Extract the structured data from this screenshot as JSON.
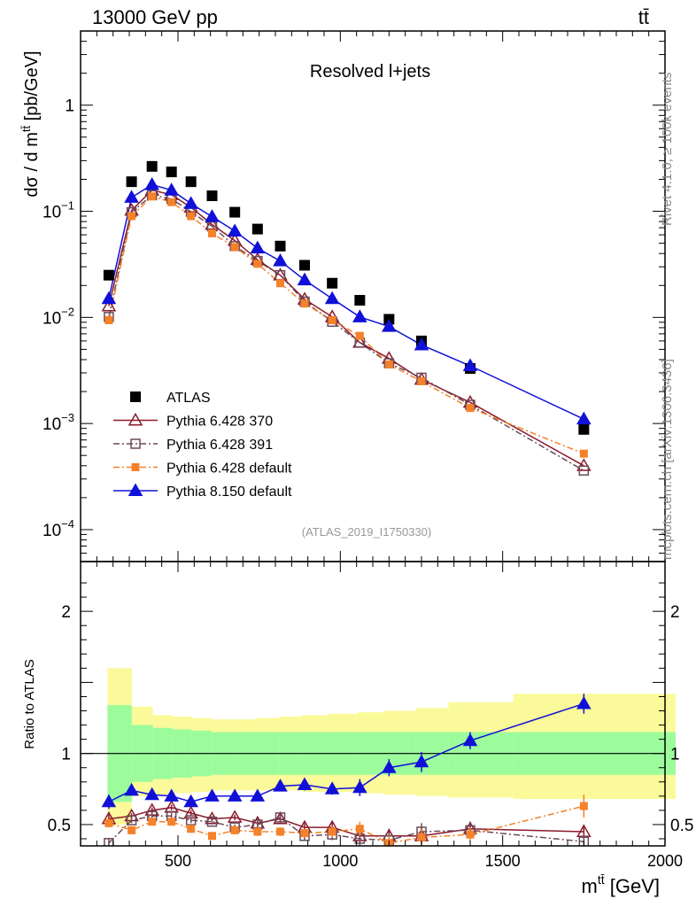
{
  "header": {
    "energy_label": "13000 GeV pp",
    "process_label": "tt̄"
  },
  "side_notes": {
    "rivet": "Rivet 4.1.0, ≥ 100k events",
    "mcplots": "mcplots.cern.ch [arXiv:1306.3436]"
  },
  "colors": {
    "ATLAS": "#000000",
    "Pythia 6.428 370": "#8b1a2b",
    "Pythia 6.428 391": "#6b4a5a",
    "Pythia 6.428 default": "#f4822a",
    "Pythia 8.150 default": "#1010d8",
    "band_inner": "#9cfc9c",
    "band_outer": "#fafa9a"
  },
  "chart_data": [
    {
      "type": "scatter",
      "title": "Resolved l+jets",
      "xlabel": "m^{tt̄} [GeV]",
      "ylabel": "dσ / d m^{tt̄} [pb/GeV]",
      "yscale": "log",
      "xlim": [
        200,
        2000
      ],
      "ylim": [
        5e-05,
        5
      ],
      "yticks": [
        {
          "value": 0.0001,
          "mant": "10",
          "exp": "−4"
        },
        {
          "value": 0.001,
          "mant": "10",
          "exp": "−3"
        },
        {
          "value": 0.01,
          "mant": "10",
          "exp": "−2"
        },
        {
          "value": 0.1,
          "mant": "10",
          "exp": "−1"
        },
        {
          "value": 1,
          "mant": "1",
          "exp": ""
        }
      ],
      "analysis_label": "(ATLAS_2019_I1750330)",
      "legend_position": "lower-left",
      "bins": [
        [
          250,
          325
        ],
        [
          325,
          390
        ],
        [
          390,
          450
        ],
        [
          450,
          510
        ],
        [
          510,
          570
        ],
        [
          570,
          640
        ],
        [
          640,
          710
        ],
        [
          710,
          780
        ],
        [
          780,
          850
        ],
        [
          850,
          930
        ],
        [
          930,
          1020
        ],
        [
          1020,
          1100
        ],
        [
          1100,
          1200
        ],
        [
          1200,
          1300
        ],
        [
          1300,
          1500
        ],
        [
          1500,
          2000
        ]
      ],
      "x": [
        287,
        357,
        420,
        480,
        540,
        605,
        675,
        745,
        815,
        890,
        975,
        1060,
        1150,
        1250,
        1400,
        1750
      ],
      "series": [
        {
          "name": "ATLAS",
          "marker": "square-filled",
          "line": "none",
          "values": [
            0.025,
            0.19,
            0.265,
            0.235,
            0.19,
            0.14,
            0.098,
            0.068,
            0.047,
            0.031,
            0.021,
            0.0145,
            0.0096,
            0.006,
            0.0033,
            0.00088
          ]
        },
        {
          "name": "Pythia 6.428 370",
          "marker": "triangle-open",
          "line": "solid",
          "values": [
            0.0128,
            0.102,
            0.158,
            0.143,
            0.109,
            0.075,
            0.053,
            0.035,
            0.025,
            0.0148,
            0.0101,
            0.0058,
            0.0041,
            0.0026,
            0.00158,
            0.0004
          ]
        },
        {
          "name": "Pythia 6.428 391",
          "marker": "square-open",
          "line": "dashdot",
          "values": [
            0.0101,
            0.098,
            0.142,
            0.131,
            0.099,
            0.072,
            0.047,
            0.034,
            0.025,
            0.0141,
            0.0091,
            0.0058,
            0.0037,
            0.0027,
            0.0015,
            0.00036
          ]
        },
        {
          "name": "Pythia 6.428 default",
          "marker": "square-filled-small",
          "line": "dashdot",
          "values": [
            0.0094,
            0.09,
            0.138,
            0.122,
            0.09,
            0.062,
            0.046,
            0.032,
            0.021,
            0.0135,
            0.0094,
            0.0067,
            0.0036,
            0.0025,
            0.0014,
            0.00052
          ]
        },
        {
          "name": "Pythia 8.150 default",
          "marker": "triangle-filled",
          "line": "solid",
          "values": [
            0.015,
            0.135,
            0.178,
            0.158,
            0.118,
            0.089,
            0.065,
            0.045,
            0.034,
            0.0225,
            0.015,
            0.0101,
            0.0082,
            0.0055,
            0.0035,
            0.0011
          ]
        }
      ]
    },
    {
      "type": "scatter",
      "xlabel": "m^{tt̄} [GeV]",
      "ylabel": "Ratio to ATLAS",
      "xlim": [
        200,
        2000
      ],
      "ylim": [
        0.35,
        2.35
      ],
      "xticks": [
        500,
        1000,
        1500,
        2000
      ],
      "yticks": [
        0.5,
        1,
        2
      ],
      "reference_line": 1,
      "band_inner": [
        [
          0.66,
          1.34
        ],
        [
          0.8,
          1.2
        ],
        [
          0.82,
          1.18
        ],
        [
          0.83,
          1.17
        ],
        [
          0.84,
          1.16
        ],
        [
          0.85,
          1.15
        ],
        [
          0.85,
          1.15
        ],
        [
          0.85,
          1.15
        ],
        [
          0.85,
          1.15
        ],
        [
          0.85,
          1.15
        ],
        [
          0.85,
          1.15
        ],
        [
          0.85,
          1.15
        ],
        [
          0.85,
          1.15
        ],
        [
          0.85,
          1.15
        ],
        [
          0.85,
          1.15
        ],
        [
          0.85,
          1.15
        ]
      ],
      "band_outer": [
        [
          0.5,
          1.6
        ],
        [
          0.7,
          1.33
        ],
        [
          0.71,
          1.27
        ],
        [
          0.72,
          1.26
        ],
        [
          0.73,
          1.25
        ],
        [
          0.74,
          1.24
        ],
        [
          0.74,
          1.24
        ],
        [
          0.74,
          1.25
        ],
        [
          0.74,
          1.26
        ],
        [
          0.73,
          1.27
        ],
        [
          0.73,
          1.28
        ],
        [
          0.72,
          1.29
        ],
        [
          0.71,
          1.3
        ],
        [
          0.7,
          1.32
        ],
        [
          0.69,
          1.36
        ],
        [
          0.68,
          1.42
        ]
      ],
      "series": [
        {
          "name": "Pythia 6.428 370",
          "values": [
            0.54,
            0.56,
            0.6,
            0.62,
            0.58,
            0.54,
            0.55,
            0.51,
            0.54,
            0.48,
            0.48,
            0.42,
            0.42,
            0.42,
            0.47,
            0.45
          ],
          "errors": [
            0.03,
            0.02,
            0.02,
            0.02,
            0.02,
            0.02,
            0.02,
            0.03,
            0.03,
            0.03,
            0.04,
            0.05,
            0.05,
            0.06,
            0.05,
            0.05
          ]
        },
        {
          "name": "Pythia 6.428 391",
          "values": [
            0.37,
            0.53,
            0.56,
            0.56,
            0.53,
            0.52,
            0.48,
            0.5,
            0.55,
            0.42,
            0.43,
            0.4,
            0.39,
            0.45,
            0.46,
            0.38
          ],
          "errors": [
            0.03,
            0.02,
            0.02,
            0.02,
            0.02,
            0.02,
            0.02,
            0.03,
            0.03,
            0.03,
            0.04,
            0.05,
            0.05,
            0.06,
            0.05,
            0.05
          ]
        },
        {
          "name": "Pythia 6.428 default",
          "values": [
            0.51,
            0.46,
            0.52,
            0.52,
            0.47,
            0.42,
            0.46,
            0.45,
            0.45,
            0.44,
            0.45,
            0.47,
            0.37,
            0.41,
            0.43,
            0.63
          ],
          "errors": [
            0.03,
            0.02,
            0.02,
            0.02,
            0.02,
            0.02,
            0.02,
            0.03,
            0.03,
            0.03,
            0.04,
            0.05,
            0.05,
            0.06,
            0.05,
            0.08
          ]
        },
        {
          "name": "Pythia 8.150 default",
          "values": [
            0.66,
            0.74,
            0.71,
            0.7,
            0.66,
            0.7,
            0.7,
            0.7,
            0.77,
            0.78,
            0.75,
            0.76,
            0.9,
            0.94,
            1.09,
            1.35
          ],
          "errors": [
            0.05,
            0.02,
            0.02,
            0.02,
            0.02,
            0.02,
            0.03,
            0.03,
            0.03,
            0.04,
            0.04,
            0.06,
            0.06,
            0.07,
            0.06,
            0.07
          ]
        }
      ]
    }
  ]
}
